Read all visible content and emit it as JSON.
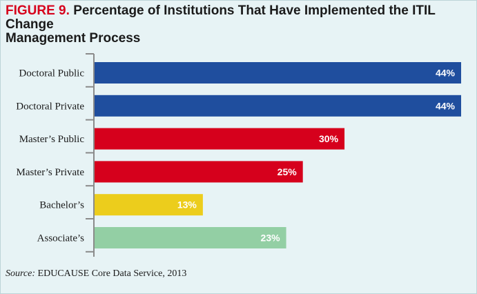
{
  "figure": {
    "label": "FIGURE 9.",
    "title_line1": "Percentage of Institutions That Have Implemented the ITIL Change",
    "title_line2": "Management Process"
  },
  "source": {
    "label": "Source:",
    "text": " EDUCAUSE Core Data Service, 2013"
  },
  "chart_data": {
    "type": "bar",
    "orientation": "horizontal",
    "title": "Percentage of Institutions That Have Implemented the ITIL Change Management Process",
    "categories": [
      "Doctoral Public",
      "Doctoral Private",
      "Master’s Public",
      "Master’s Private",
      "Bachelor’s",
      "Associate’s"
    ],
    "values": [
      44,
      44,
      30,
      25,
      13,
      23
    ],
    "labels": [
      "44%",
      "44%",
      "30%",
      "25%",
      "13%",
      "23%"
    ],
    "colors": [
      "#1f4e9e",
      "#1f4e9e",
      "#d6001c",
      "#d6001c",
      "#eccd1c",
      "#93cfa4"
    ],
    "xlim": [
      0,
      44
    ],
    "xlabel": "",
    "ylabel": "",
    "grid": false,
    "legend": "none"
  }
}
